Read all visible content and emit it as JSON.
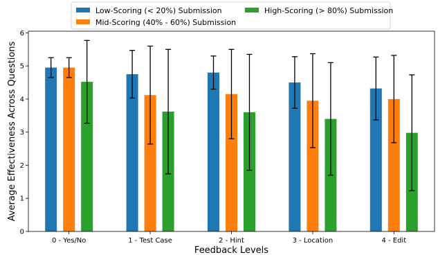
{
  "chart_data": {
    "type": "bar",
    "title": "",
    "xlabel": "Feedback Levels",
    "ylabel": "Average Effectiveness Across Questions",
    "ylim": [
      0,
      6.05
    ],
    "yticks": [
      0,
      1,
      2,
      3,
      4,
      5,
      6
    ],
    "categories": [
      "0 - Yes/No",
      "1 - Test Case",
      "2 - Hint",
      "3 - Location",
      "4 - Edit"
    ],
    "legend_position": "top-center",
    "legend_columns": 2,
    "grid": false,
    "series": [
      {
        "name": "Low-Scoring (< 20%) Submission",
        "color": "#1f77b4",
        "values": [
          4.95,
          4.75,
          4.8,
          4.5,
          4.32
        ],
        "errors": [
          0.3,
          0.72,
          0.5,
          0.78,
          0.95
        ]
      },
      {
        "name": "Mid-Scoring (40% - 60%) Submission",
        "color": "#ff7f0e",
        "values": [
          4.95,
          4.12,
          4.15,
          3.95,
          4.0
        ],
        "errors": [
          0.3,
          1.48,
          1.35,
          1.42,
          1.32
        ]
      },
      {
        "name": "High-Scoring (> 80%) Submission",
        "color": "#2ca02c",
        "values": [
          4.52,
          3.62,
          3.6,
          3.4,
          2.98
        ],
        "errors": [
          1.25,
          1.88,
          1.75,
          1.7,
          1.75
        ]
      }
    ]
  }
}
